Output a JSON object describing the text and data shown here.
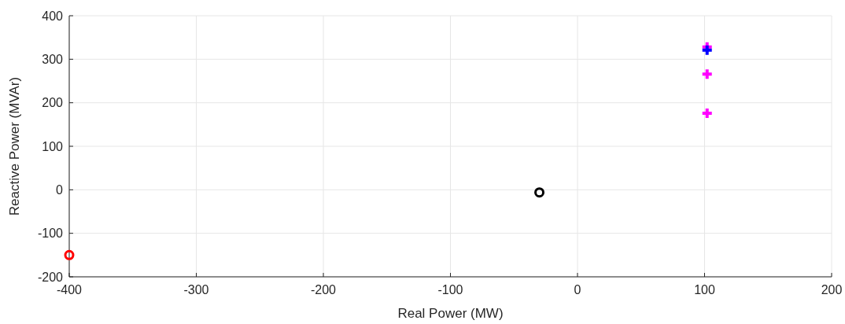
{
  "chart_data": {
    "type": "scatter",
    "xlabel": "Real Power (MW)",
    "ylabel": "Reactive Power (MVAr)",
    "xlim": [
      -400,
      200
    ],
    "xticks": [
      -400,
      -300,
      -200,
      -100,
      0,
      100,
      200
    ],
    "ylim": [
      -200,
      400
    ],
    "yticks": [
      -200,
      -100,
      0,
      100,
      200,
      300,
      400
    ],
    "grid": true,
    "series": [
      {
        "color": "#ff0000",
        "marker": "circle",
        "x": [
          -400
        ],
        "values": [
          -150
        ]
      },
      {
        "color": "#000000",
        "marker": "circle",
        "x": [
          -30
        ],
        "values": [
          -6
        ]
      },
      {
        "color": "#ff00ff",
        "marker": "cross",
        "x": [
          102,
          102,
          102
        ],
        "values": [
          328,
          266,
          176
        ]
      },
      {
        "color": "#0000ff",
        "marker": "cross",
        "x": [
          102
        ],
        "values": [
          321
        ]
      }
    ]
  }
}
